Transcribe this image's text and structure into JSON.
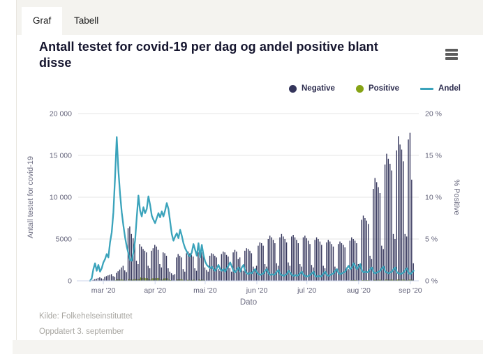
{
  "tabs": {
    "graf": "Graf",
    "tabell": "Tabell"
  },
  "header": {
    "title": "Antall testet for covid-19 per dag og andel positive blant disse"
  },
  "legend": [
    {
      "label": "Negative",
      "color": "#34355B",
      "marker": "circle"
    },
    {
      "label": "Positive",
      "color": "#86A315",
      "marker": "circle"
    },
    {
      "label": "Andel",
      "color": "#3AA3BB",
      "marker": "line"
    }
  ],
  "footer": {
    "source": "Kilde: Folkehelseinstituttet",
    "updated": "Oppdatert 3. september"
  },
  "colors": {
    "negative": "#34355B",
    "positive": "#86A315",
    "andel": "#3AA3BB",
    "gridline": "#e6e6e6",
    "axis_line": "#ccd6eb",
    "tick_text": "#63637a",
    "axis_title_text": "#6b6b80",
    "title_text": "#15152e",
    "footer_text": "#a9a7a2"
  },
  "chart_data": {
    "type": "mixed-column-line",
    "title": "Antall testet for covid-19 per dag og andel positive blant disse",
    "xlabel": "Dato",
    "ylabel_left": "Antall testet for covid-19",
    "ylabel_right": "% Positive",
    "ylim_left": [
      0,
      20000
    ],
    "ylim_right": [
      0,
      20
    ],
    "grid": true,
    "legend_position": "top-right",
    "y_ticks_left": [
      "0",
      "5000",
      "10 000",
      "15 000",
      "20 000"
    ],
    "y_tick_values_left": [
      0,
      5000,
      10000,
      15000,
      20000
    ],
    "y_ticks_right": [
      "0 %",
      "5 %",
      "10 %",
      "15 %",
      "20 %"
    ],
    "y_tick_values_right": [
      0,
      5,
      10,
      15,
      20
    ],
    "x_tick_labels": [
      "mar '20",
      "apr '20",
      "mai '20",
      "jun '20",
      "jul '20",
      "aug '20",
      "sep '20"
    ],
    "x_tick_days": [
      8,
      39,
      69,
      100,
      130,
      161,
      192
    ],
    "start_date": "2020-02-22",
    "end_date": "2020-09-03",
    "series": [
      {
        "name": "Negative",
        "type": "column",
        "color": "#34355B",
        "values": [
          30,
          40,
          120,
          190,
          260,
          340,
          420,
          300,
          240,
          480,
          560,
          650,
          720,
          800,
          560,
          480,
          950,
          1150,
          1350,
          1600,
          1800,
          1250,
          1050,
          6300,
          6500,
          5600,
          5100,
          4700,
          2400,
          2000,
          4400,
          4100,
          3800,
          3600,
          3400,
          1800,
          1500,
          3600,
          3900,
          4300,
          4100,
          3700,
          2000,
          1600,
          3400,
          3300,
          3000,
          1500,
          1100,
          900,
          700,
          800,
          2800,
          3200,
          3000,
          2800,
          1400,
          1100,
          3300,
          3500,
          3300,
          3100,
          2900,
          1500,
          1200,
          3400,
          3600,
          3400,
          3200,
          1600,
          1300,
          1100,
          3000,
          3300,
          3200,
          3000,
          2800,
          1400,
          1200,
          3200,
          3500,
          3400,
          3100,
          2900,
          1500,
          1100,
          3400,
          3700,
          3500,
          2600,
          2800,
          1400,
          1200,
          3600,
          3900,
          3800,
          3600,
          3300,
          1700,
          1400,
          1800,
          4200,
          4600,
          4500,
          4200,
          2000,
          1700,
          5000,
          5400,
          5200,
          4900,
          4500,
          2100,
          1800,
          5200,
          5600,
          5300,
          5000,
          4600,
          2200,
          1800,
          5300,
          5500,
          5200,
          4900,
          4500,
          2000,
          1700,
          5200,
          5400,
          5100,
          4800,
          4400,
          1900,
          1600,
          4900,
          5200,
          5000,
          4700,
          4300,
          1800,
          1500,
          4600,
          4900,
          4700,
          4400,
          4100,
          1700,
          1400,
          4400,
          4700,
          4500,
          4300,
          4000,
          1600,
          1400,
          4800,
          5200,
          5000,
          4800,
          4500,
          2000,
          1800,
          7300,
          7800,
          7500,
          7200,
          6800,
          3000,
          2600,
          11000,
          12300,
          11800,
          11200,
          10500,
          4200,
          3800,
          13900,
          15200,
          14600,
          14000,
          13200,
          5600,
          5000,
          15600,
          17300,
          16300,
          15700,
          14300,
          5600,
          5300,
          16900,
          17700,
          12100,
          2100
        ]
      },
      {
        "name": "Positive",
        "type": "column",
        "color": "#86A315",
        "values": [
          0,
          0,
          2,
          4,
          3,
          7,
          5,
          5,
          5,
          13,
          19,
          19,
          35,
          49,
          50,
          68,
          197,
          175,
          157,
          143,
          127,
          69,
          45,
          215,
          167,
          138,
          180,
          237,
          197,
          227,
          404,
          342,
          367,
          317,
          320,
          202,
          150,
          305,
          307,
          319,
          332,
          326,
          164,
          145,
          284,
          303,
          308,
          141,
          84,
          53,
          35,
          45,
          169,
          172,
          195,
          160,
          66,
          45,
          120,
          112,
          99,
          109,
          133,
          58,
          37,
          160,
          104,
          153,
          102,
          38,
          25,
          19,
          46,
          57,
          45,
          36,
          43,
          27,
          17,
          39,
          50,
          38,
          47,
          53,
          34,
          19,
          41,
          37,
          46,
          42,
          31,
          23,
          23,
          44,
          35,
          31,
          36,
          30,
          21,
          20,
          18,
          34,
          32,
          36,
          38,
          24,
          24,
          45,
          38,
          42,
          35,
          36,
          23,
          24,
          42,
          39,
          32,
          35,
          37,
          27,
          18,
          37,
          33,
          37,
          29,
          32,
          18,
          19,
          37,
          33,
          26,
          29,
          31,
          17,
          18,
          30,
          26,
          30,
          24,
          26,
          16,
          17,
          32,
          30,
          33,
          36,
          37,
          21,
          20,
          40,
          38,
          41,
          43,
          44,
          24,
          26,
          68,
          85,
          107,
          88,
          64,
          35,
          37,
          89,
          79,
          83,
          73,
          76,
          43,
          42,
          111,
          112,
          119,
          125,
          128,
          64,
          66,
          155,
          154,
          133,
          141,
          147,
          80,
          81,
          158,
          157,
          132,
          143,
          144,
          74,
          81,
          154,
          143,
          122,
          26
        ]
      },
      {
        "name": "Andel",
        "type": "line",
        "unit": "%",
        "color": "#3AA3BB",
        "values": [
          0,
          0.3,
          1.4,
          2.1,
          1.2,
          1.9,
          1.1,
          1.5,
          2.2,
          2.6,
          3.2,
          2.8,
          4.6,
          5.8,
          8.2,
          12.4,
          17.2,
          13.2,
          10.4,
          8.2,
          6.6,
          5.2,
          4.1,
          3.3,
          2.5,
          2.4,
          3.4,
          4.8,
          7.6,
          10.2,
          8.4,
          7.7,
          8.8,
          8.1,
          8.6,
          10.1,
          9.1,
          7.8,
          7.3,
          6.9,
          7.5,
          8.1,
          7.6,
          8.3,
          7.7,
          8.4,
          9.3,
          8.6,
          7.1,
          5.6,
          4.8,
          5.3,
          5.7,
          5.1,
          6.1,
          5.4,
          4.5,
          3.9,
          3.5,
          3.1,
          2.9,
          3.4,
          4.4,
          3.7,
          3.0,
          4.5,
          2.8,
          4.3,
          3.1,
          2.3,
          1.9,
          1.7,
          1.5,
          1.7,
          1.4,
          1.2,
          1.5,
          1.9,
          1.4,
          1.2,
          1.4,
          1.1,
          1.5,
          1.8,
          2.2,
          1.7,
          1.2,
          1.0,
          1.3,
          1.6,
          1.1,
          1.6,
          1.9,
          1.2,
          0.9,
          0.8,
          1.0,
          0.9,
          1.2,
          1.4,
          1.0,
          0.8,
          0.7,
          0.8,
          0.9,
          1.2,
          1.4,
          0.9,
          0.7,
          0.8,
          0.7,
          0.8,
          1.1,
          1.3,
          0.8,
          0.7,
          0.6,
          0.7,
          0.8,
          1.2,
          1.0,
          0.7,
          0.6,
          0.7,
          0.6,
          0.7,
          0.9,
          1.1,
          0.7,
          0.6,
          0.5,
          0.6,
          0.7,
          0.9,
          1.1,
          0.6,
          0.5,
          0.6,
          0.5,
          0.6,
          0.9,
          1.1,
          0.7,
          0.6,
          0.7,
          0.8,
          0.9,
          1.2,
          1.4,
          0.9,
          0.8,
          0.9,
          1.0,
          1.1,
          1.5,
          1.8,
          1.4,
          1.6,
          2.1,
          1.8,
          1.4,
          1.7,
          2.0,
          1.2,
          1.0,
          1.1,
          1.0,
          1.1,
          1.4,
          1.6,
          1.0,
          0.9,
          1.0,
          1.1,
          1.2,
          1.5,
          1.7,
          1.1,
          1.0,
          0.9,
          1.0,
          1.1,
          1.4,
          1.6,
          1.0,
          0.9,
          0.8,
          0.9,
          1.0,
          1.3,
          1.5,
          0.9,
          0.8,
          1.0,
          1.2
        ]
      }
    ]
  }
}
